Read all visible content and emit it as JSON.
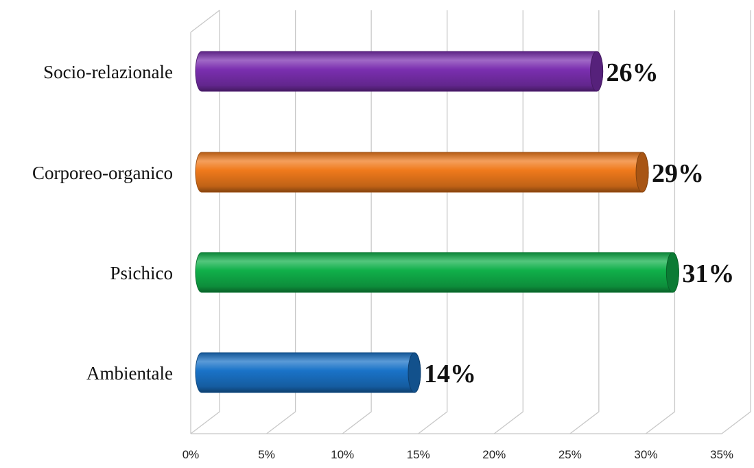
{
  "chart_data": {
    "type": "bar",
    "orientation": "horizontal",
    "style": "3d-cylinder",
    "categories": [
      "Socio-relazionale",
      "Corporeo-organico",
      "Psichico",
      "Ambientale"
    ],
    "values": [
      26,
      29,
      31,
      14
    ],
    "value_labels": [
      "26%",
      "29%",
      "31%",
      "14%"
    ],
    "colors": [
      "#7b2fb0",
      "#f07a1c",
      "#10b04a",
      "#1a73c8"
    ],
    "xlim": [
      0,
      35
    ],
    "x_ticks": [
      0,
      5,
      10,
      15,
      20,
      25,
      30,
      35
    ],
    "x_tick_labels": [
      "0%",
      "5%",
      "10%",
      "15%",
      "20%",
      "25%",
      "30%",
      "35%"
    ],
    "grid": true,
    "legend": "none"
  }
}
